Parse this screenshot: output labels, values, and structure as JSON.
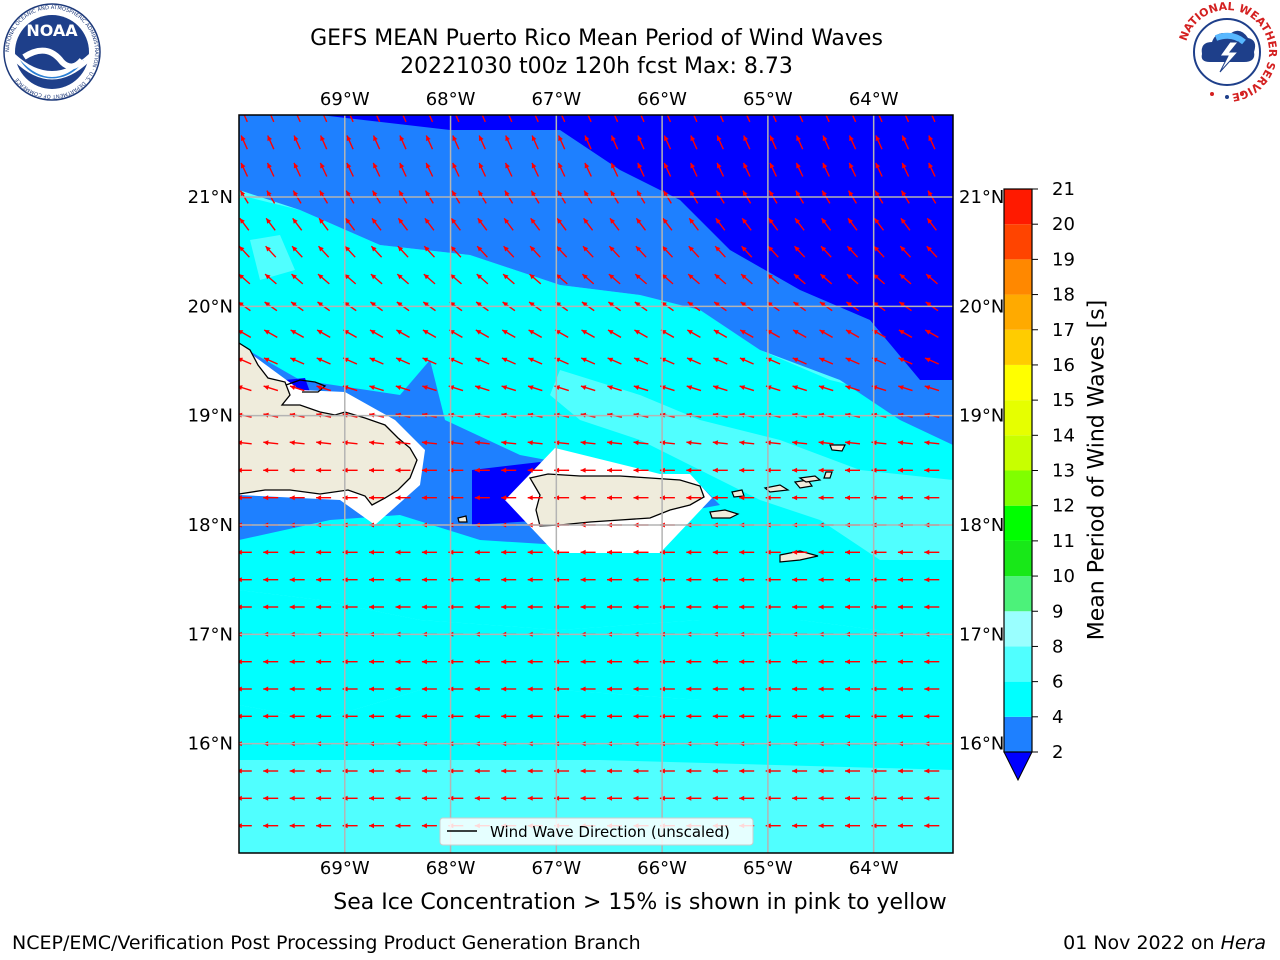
{
  "title": {
    "line1": "GEFS MEAN Puerto Rico Mean Period of Wind Waves",
    "line2": "20221030 t00z 120h fcst   Max: 8.73"
  },
  "map": {
    "lon_ticks": [
      "69°W",
      "68°W",
      "67°W",
      "66°W",
      "65°W",
      "64°W"
    ],
    "lat_ticks": [
      "21°N",
      "20°N",
      "19°N",
      "18°N",
      "17°N",
      "16°N"
    ],
    "lon_range": [
      -70.0,
      -63.25
    ],
    "lat_range": [
      15.0,
      21.75
    ],
    "legend_label": "Wind Wave Direction (unscaled)",
    "arrow_color": "#ff0000",
    "coast_color": "#000000",
    "land_color": "#efecdc",
    "grid_color": "#b4b4b4"
  },
  "colorbar": {
    "label": "Mean Period of Wind Waves [s]",
    "ticks": [
      "2",
      "4",
      "6",
      "8",
      "9",
      "10",
      "11",
      "12",
      "13",
      "14",
      "15",
      "16",
      "17",
      "18",
      "19",
      "20",
      "21"
    ],
    "colors": [
      "#0a14ff",
      "#1e80ff",
      "#00ffff",
      "#50ffff",
      "#9affff",
      "#4cf27a",
      "#18e818",
      "#00ff00",
      "#80ff00",
      "#c8ff00",
      "#e6ff00",
      "#ffff00",
      "#ffcc00",
      "#ffaa00",
      "#ff8800",
      "#ff4400",
      "#ff1a00",
      "#ff0000"
    ],
    "extend_color": "#0000ff"
  },
  "subtitle": "Sea Ice Concentration > 15% is shown in pink to yellow",
  "footer": {
    "left": "NCEP/EMC/Verification Post Processing Product Generation Branch",
    "right_date": "01 Nov 2022 on ",
    "right_host": "Hera"
  },
  "logos": {
    "noaa_text": "NOAA",
    "noaa_ring": "NATIONAL OCEANIC AND ATMOSPHERIC ADMINISTRATION · U.S. DEPARTMENT OF COMMERCE",
    "nws_ring": "NATIONAL WEATHER SERVICE"
  }
}
